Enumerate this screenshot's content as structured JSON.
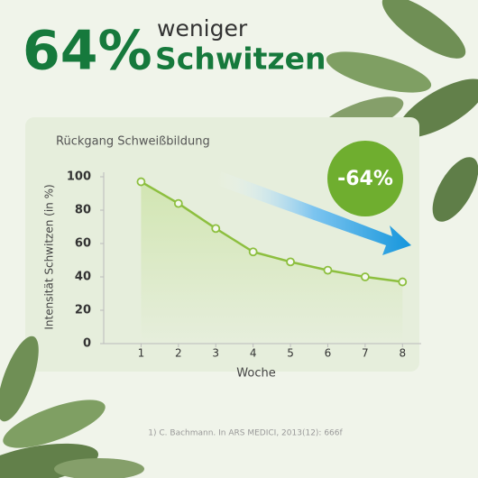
{
  "headline": {
    "number": "64%",
    "line1": "weniger",
    "line2": "Schwitzen"
  },
  "badge": "-64%",
  "footnote": "1) C. Bachmann. In ARS MEDICI, 2013(12): 666f",
  "chart_data": {
    "type": "line",
    "title": "Rückgang Schweißbildung",
    "x_label": "Woche",
    "y_label": "Intensität Schwitzen (in %)",
    "x": [
      1,
      2,
      3,
      4,
      5,
      6,
      7,
      8
    ],
    "values": [
      97,
      84,
      69,
      55,
      49,
      44,
      40,
      37
    ],
    "color": "#8dbf3f",
    "xlim": [
      0,
      8.5
    ],
    "xticks": [
      1,
      2,
      3,
      4,
      5,
      6,
      7,
      8
    ],
    "ylim": [
      0,
      100
    ],
    "yticks": [
      0,
      20,
      40,
      60,
      80,
      100
    ]
  }
}
